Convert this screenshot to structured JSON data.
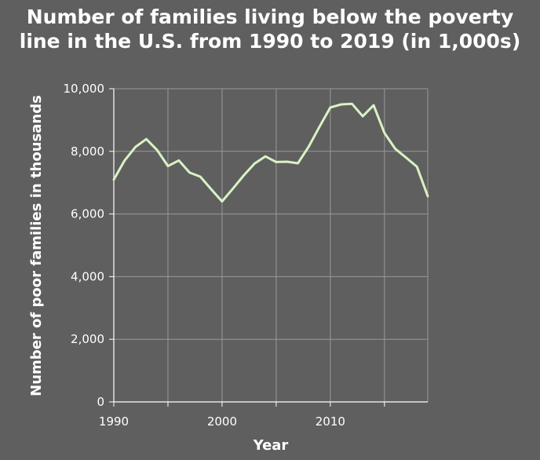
{
  "title_lines": [
    "Number of families living below the poverty",
    "line in the U.S. from 1990 to 2019 (in 1,000s)"
  ],
  "chart_data": {
    "type": "line",
    "title": "Number of families living below the poverty line in the U.S. from 1990 to 2019 (in 1,000s)",
    "xlabel": "Year",
    "ylabel": "Number of poor families in thousands",
    "xlim": [
      1990,
      2019
    ],
    "ylim": [
      0,
      10000
    ],
    "x_ticks": [
      1990,
      1995,
      2000,
      2005,
      2010,
      2015
    ],
    "x_tick_labels": [
      "1990",
      "",
      "2000",
      "",
      "2010",
      ""
    ],
    "y_ticks": [
      0,
      2000,
      4000,
      6000,
      8000,
      10000
    ],
    "y_tick_labels": [
      "0",
      "2,000",
      "4,000",
      "6,000",
      "8,000",
      "10,000"
    ],
    "grid": true,
    "series": [
      {
        "color": "#d9f2c4",
        "x": [
          1990,
          1991,
          1992,
          1993,
          1994,
          1995,
          1996,
          1997,
          1998,
          1999,
          2000,
          2001,
          2002,
          2003,
          2004,
          2005,
          2006,
          2007,
          2008,
          2009,
          2010,
          2011,
          2012,
          2013,
          2014,
          2015,
          2016,
          2017,
          2018,
          2019
        ],
        "y": [
          7100,
          7710,
          8140,
          8390,
          8040,
          7530,
          7710,
          7320,
          7190,
          6790,
          6400,
          6810,
          7230,
          7610,
          7840,
          7660,
          7670,
          7620,
          8150,
          8790,
          9400,
          9500,
          9520,
          9120,
          9470,
          8590,
          8080,
          7800,
          7510,
          6570
        ]
      }
    ]
  },
  "colors": {
    "background": "#5f5f5f",
    "grid": "#999999",
    "line": "#d9f2c4",
    "text": "#ffffff"
  }
}
